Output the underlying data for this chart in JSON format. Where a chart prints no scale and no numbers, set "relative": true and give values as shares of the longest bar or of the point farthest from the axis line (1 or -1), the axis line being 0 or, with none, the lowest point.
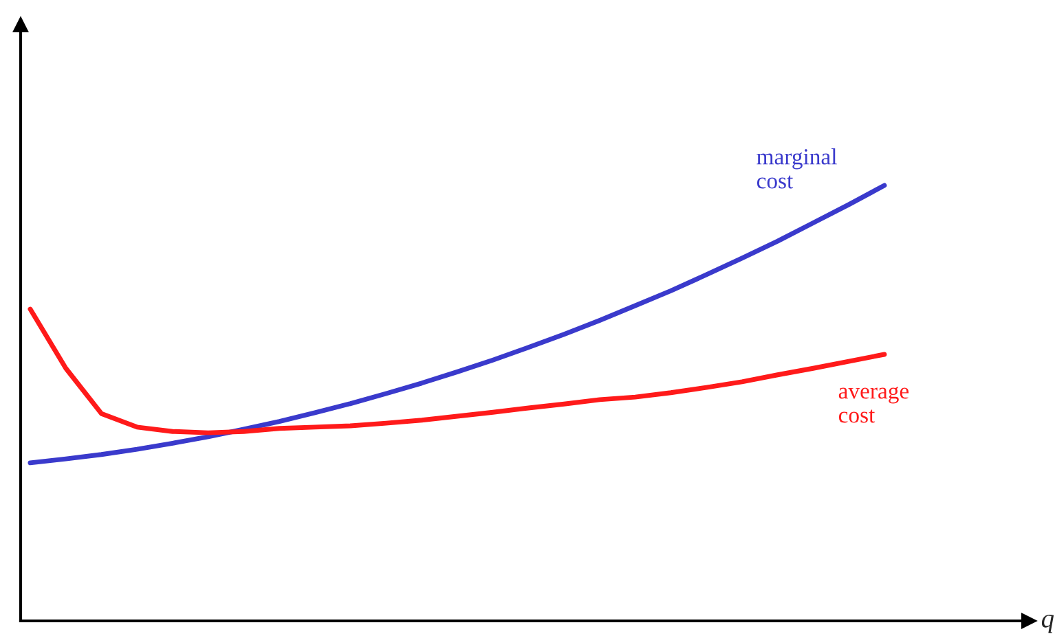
{
  "chart_data": {
    "type": "line",
    "relative": true,
    "annotations": [
      "q"
    ],
    "legend": false,
    "marker": "none",
    "line_style": "solid",
    "categories": [
      null,
      null,
      null,
      null,
      null,
      null,
      null,
      null,
      null,
      null,
      null,
      null,
      null,
      null,
      null,
      null,
      null,
      null,
      null,
      null,
      null,
      null,
      null,
      null,
      null
    ],
    "series": [
      {
        "name": "marginal\ncost",
        "color": "#3a3acc",
        "values": [
          0.363,
          0.372,
          0.382,
          0.394,
          0.408,
          0.423,
          0.44,
          0.458,
          0.478,
          0.499,
          0.522,
          0.546,
          0.572,
          0.599,
          0.628,
          0.658,
          0.69,
          0.724,
          0.758,
          0.795,
          0.833,
          0.872,
          0.914,
          0.956,
          1.0
        ]
      },
      {
        "name": "average\ncost",
        "color": "#ff1a1a",
        "values": [
          0.716,
          0.58,
          0.476,
          0.445,
          0.435,
          0.432,
          0.435,
          0.442,
          0.445,
          0.448,
          0.454,
          0.461,
          0.47,
          0.479,
          0.489,
          0.498,
          0.508,
          0.514,
          0.524,
          0.536,
          0.549,
          0.565,
          0.58,
          0.596,
          0.612
        ]
      }
    ]
  }
}
